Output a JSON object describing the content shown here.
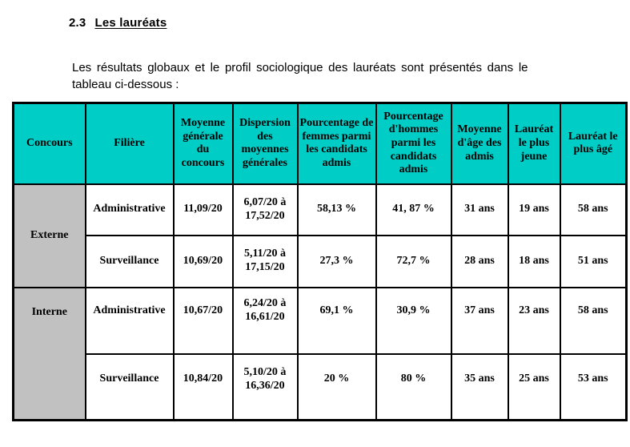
{
  "doc": {
    "section_number": "2.3",
    "section_title": "Les lauréats",
    "intro_line1": "Les résultats globaux et le profil sociologique des lauréats sont présentés dans le",
    "intro_line2": "tableau ci-dessous :"
  },
  "colors": {
    "header_bg": "#00CDC6",
    "group_cell_bg": "#C1C1C1",
    "table_border": "#000000",
    "text": "#000000"
  },
  "table": {
    "columns": [
      "Concours",
      "Filière",
      "Moyenne générale du concours",
      "Dispersion des moyennes générales",
      "Pourcentage de femmes parmi les candidats admis",
      "Pourcentage d'hommes parmi les candidats admis",
      "Moyenne d'âge des admis",
      "Lauréat le plus jeune",
      "Lauréat le plus âgé"
    ],
    "groups": [
      {
        "concours": "Externe",
        "rows": [
          {
            "filiere": "Administrative",
            "moyenne": "11,09/20",
            "dispersion": "6,07/20 à\n17,52/20",
            "femmes": "58,13 %",
            "hommes": "41, 87 %",
            "age_moyen": "31 ans",
            "plus_jeune": "19 ans",
            "plus_age": "58 ans"
          },
          {
            "filiere": "Surveillance",
            "moyenne": "10,69/20",
            "dispersion": "5,11/20 à\n17,15/20",
            "femmes": "27,3 %",
            "hommes": "72,7 %",
            "age_moyen": "28 ans",
            "plus_jeune": "18 ans",
            "plus_age": "51 ans"
          }
        ]
      },
      {
        "concours": "Interne",
        "rows": [
          {
            "filiere": "Administrative",
            "moyenne": "10,67/20",
            "dispersion": "6,24/20 à\n16,61/20",
            "femmes": "69,1 %",
            "hommes": "30,9 %",
            "age_moyen": "37 ans",
            "plus_jeune": "23 ans",
            "plus_age": "58 ans"
          },
          {
            "filiere": "Surveillance",
            "moyenne": "10,84/20",
            "dispersion": "5,10/20 à\n16,36/20",
            "femmes": "20 %",
            "hommes": "80 %",
            "age_moyen": "35 ans",
            "plus_jeune": "25 ans",
            "plus_age": "53 ans"
          }
        ]
      }
    ]
  }
}
